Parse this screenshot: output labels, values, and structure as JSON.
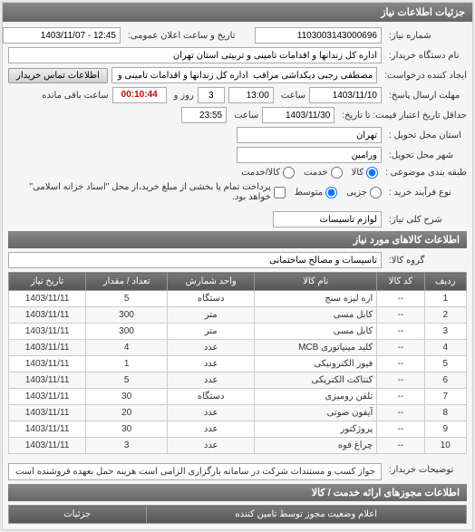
{
  "panel": {
    "title": "جزئیات اطلاعات نیاز"
  },
  "form": {
    "need_number_label": "شماره نیاز:",
    "need_number": "1103003143000696",
    "public_datetime_label": "تاریخ و ساعت اعلان عمومی:",
    "public_datetime": "12:45 - 1403/11/07",
    "buyer_org_label": "نام دستگاه خریدار:",
    "buyer_org": "اداره کل زندانها و اقدامات تامینی و تربیتی استان تهران",
    "creator_label": "ایجاد کننده درخواست:",
    "creator": "مصطفی رجبی دیکداشی مراقب  اداره کل زندانها و اقدامات تامینی و تربیتی اس",
    "contact_btn": "اطلاعات تماس خریدار",
    "deadline_from_label": "مهلت ارسال پاسخ:",
    "deadline_from_sublabel": "تا تاریخ:",
    "deadline_from_date": "1403/11/10",
    "hour_label": "ساعت",
    "deadline_from_time": "13:00",
    "days_count": "3",
    "days_label": "روز و",
    "time_remaining": "00:10:44",
    "time_remaining_label": "ساعت باقی مانده",
    "price_validity_label": "حداقل تاریخ اعتبار قیمت: تا تاریخ:",
    "price_validity_date": "1403/11/30",
    "price_validity_time": "23:55",
    "delivery_province_label": "استان محل تحویل :",
    "delivery_province": "تهران",
    "delivery_city_label": "شهر محل تحویل:",
    "delivery_city": "ورامین",
    "category_label": "طبقه بندی موضوعی :",
    "cat_goods": "کالا",
    "cat_service": "خدمت",
    "cat_goods_service": "کالا/خدمت",
    "process_label": "نوع فرآیند خرید :",
    "proc_small": "جزیی",
    "proc_medium": "متوسط",
    "proc_note": "پرداخت تمام یا بخشی از مبلغ خرید،از محل \"اسناد خزانه اسلامی\" خواهد بود.",
    "need_desc_label": "شرح کلی نیاز:",
    "need_desc": "لوازم تاسیسات"
  },
  "items_section": {
    "title": "اطلاعات کالاهای مورد نیاز",
    "group_label": "گروه کالا:",
    "group_value": "تاسیسات و مصالح ساختمانی"
  },
  "table": {
    "headers": {
      "row": "ردیف",
      "code": "کد کالا",
      "name": "نام کالا",
      "unit": "واحد شمارش",
      "qty": "تعداد / مقدار",
      "date": "تاریخ نیاز"
    },
    "rows": [
      {
        "n": "1",
        "code": "--",
        "name": "اره لیزه سنج",
        "unit": "دستگاه",
        "qty": "5",
        "date": "1403/11/11"
      },
      {
        "n": "2",
        "code": "--",
        "name": "کابل مسی",
        "unit": "متر",
        "qty": "300",
        "date": "1403/11/11"
      },
      {
        "n": "3",
        "code": "--",
        "name": "کابل مسی",
        "unit": "متر",
        "qty": "300",
        "date": "1403/11/11"
      },
      {
        "n": "4",
        "code": "--",
        "name": "کلید مینیاتوری MCB",
        "unit": "عدد",
        "qty": "4",
        "date": "1403/11/11"
      },
      {
        "n": "5",
        "code": "--",
        "name": "فیوز الکترونیکی",
        "unit": "عدد",
        "qty": "1",
        "date": "1403/11/11"
      },
      {
        "n": "6",
        "code": "--",
        "name": "کنتاکت الکتریکی",
        "unit": "عدد",
        "qty": "5",
        "date": "1403/11/11"
      },
      {
        "n": "7",
        "code": "--",
        "name": "تلفن رومیزی",
        "unit": "دستگاه",
        "qty": "30",
        "date": "1403/11/11"
      },
      {
        "n": "8",
        "code": "--",
        "name": "آیفون صوتی",
        "unit": "عدد",
        "qty": "20",
        "date": "1403/11/11"
      },
      {
        "n": "9",
        "code": "--",
        "name": "پروژکتور",
        "unit": "عدد",
        "qty": "30",
        "date": "1403/11/11"
      },
      {
        "n": "10",
        "code": "--",
        "name": "چراغ قوه",
        "unit": "عدد",
        "qty": "3",
        "date": "1403/11/11"
      }
    ]
  },
  "buyer_notes": {
    "label": "توضیحات خریدار:",
    "text": "جواز کسب و مستندات شرکت در سامانه بارگزاری الزامی است هزینه حمل بعهده فروشنده است"
  },
  "permits": {
    "title": "اطلاعات مجوزهای ارائه خدمت / کالا",
    "col_permit": "اعلام وضعیت مجوز توسط تامین کننده",
    "col_details": "جزئیات"
  }
}
